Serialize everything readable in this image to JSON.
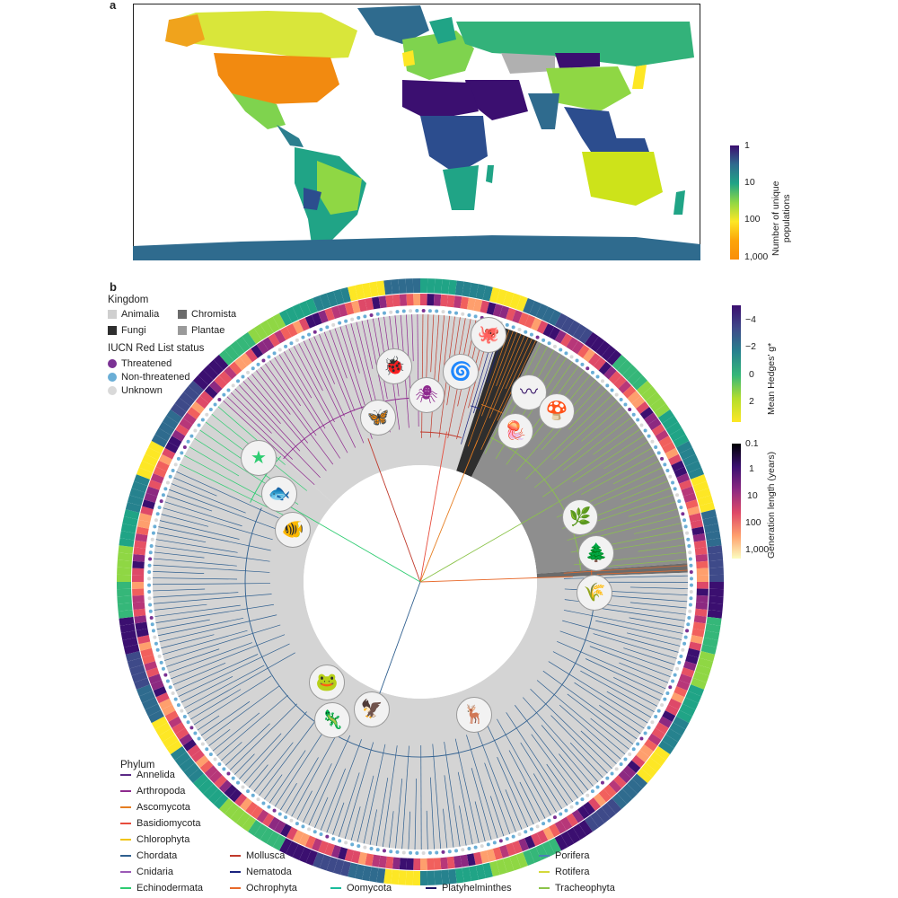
{
  "panel_a": {
    "letter": "a",
    "colorbar": {
      "title_line1": "Number of unique",
      "title_line2": "populations",
      "ticks": [
        "1",
        "10",
        "100",
        "1,000"
      ],
      "colors": [
        "#3b0f70",
        "#2f6b8e",
        "#20a486",
        "#8fd744",
        "#fde725",
        "#fca50a",
        "#f98e09"
      ]
    }
  },
  "panel_b": {
    "letter": "b",
    "kingdom_legend": {
      "title": "Kingdom",
      "items": [
        {
          "label": "Animalia",
          "color": "#cfcfcf"
        },
        {
          "label": "Chromista",
          "color": "#6b6b6b"
        },
        {
          "label": "Fungi",
          "color": "#2e2e2e"
        },
        {
          "label": "Plantae",
          "color": "#9a9a9a"
        }
      ]
    },
    "iucn_legend": {
      "title": "IUCN Red List status",
      "items": [
        {
          "label": "Threatened",
          "color": "#7b3294"
        },
        {
          "label": "Non-threatened",
          "color": "#6aaed6"
        },
        {
          "label": "Unknown",
          "color": "#d9d9d9"
        }
      ]
    },
    "hedges_colorbar": {
      "title": "Mean Hedges' g*",
      "ticks": [
        "−4",
        "−2",
        "0",
        "2"
      ]
    },
    "generation_colorbar": {
      "title": "Generation length (years)",
      "ticks": [
        "0.1",
        "1",
        "10",
        "100",
        "1,000"
      ]
    },
    "phylum_legend": {
      "title": "Phylum",
      "items": [
        {
          "label": "Annelida",
          "color": "#5b2a86"
        },
        {
          "label": "Arthropoda",
          "color": "#8e2a8e"
        },
        {
          "label": "Ascomycota",
          "color": "#e67e22"
        },
        {
          "label": "Basidiomycota",
          "color": "#e74c3c"
        },
        {
          "label": "Chlorophyta",
          "color": "#f1c40f"
        },
        {
          "label": "Chordata",
          "color": "#2f5f8f"
        },
        {
          "label": "Cnidaria",
          "color": "#9b59b6"
        },
        {
          "label": "Echinodermata",
          "color": "#2ecc71"
        },
        {
          "label": "Mollusca",
          "color": "#c0392b"
        },
        {
          "label": "Nematoda",
          "color": "#1a237e"
        },
        {
          "label": "Ochrophyta",
          "color": "#e8692a"
        },
        {
          "label": "Oomycota",
          "color": "#1abc9c"
        },
        {
          "label": "Platyhelminthes",
          "color": "#1b1464"
        },
        {
          "label": "Porifera",
          "color": "#4a7fb5"
        },
        {
          "label": "Rotifera",
          "color": "#d4d83a"
        },
        {
          "label": "Tracheophyta",
          "color": "#8bc34a"
        }
      ]
    },
    "silhouettes": [
      {
        "name": "insect-cluster-icon",
        "glyph": "🐞",
        "color": "#8e2a8e"
      },
      {
        "name": "spider-icon",
        "glyph": "🕷",
        "color": "#8e2a8e"
      },
      {
        "name": "snail-shell-icon",
        "glyph": "🌀",
        "color": "#2a1a5e"
      },
      {
        "name": "snail-octopus-icon",
        "glyph": "🐙",
        "color": "#c0392b"
      },
      {
        "name": "worm-icon",
        "glyph": "〰",
        "color": "#3b1a6b"
      },
      {
        "name": "dragonfly-icon",
        "glyph": "🦋",
        "color": "#8e2a8e"
      },
      {
        "name": "jellyfish-icon",
        "glyph": "🪼",
        "color": "#9b59b6"
      },
      {
        "name": "mushroom-icon",
        "glyph": "🍄",
        "color": "#e74c3c"
      },
      {
        "name": "starfish-icon",
        "glyph": "★",
        "color": "#2ecc71"
      },
      {
        "name": "fish-icon",
        "glyph": "🐟",
        "color": "#2f5f8f"
      },
      {
        "name": "fish2-icon",
        "glyph": "🐠",
        "color": "#2f5f8f"
      },
      {
        "name": "plant-icon",
        "glyph": "🌿",
        "color": "#8bc34a"
      },
      {
        "name": "tree-icon",
        "glyph": "🌲",
        "color": "#8bc34a"
      },
      {
        "name": "seaweed-icon",
        "glyph": "🌾",
        "color": "#e8692a"
      },
      {
        "name": "frog-icon",
        "glyph": "🐸",
        "color": "#2f5f8f"
      },
      {
        "name": "lizard-icon",
        "glyph": "🦎",
        "color": "#2f5f8f"
      },
      {
        "name": "bird-icon",
        "glyph": "🦅",
        "color": "#2f5f8f"
      },
      {
        "name": "deer-icon",
        "glyph": "🦌",
        "color": "#2f5f8f"
      }
    ]
  }
}
